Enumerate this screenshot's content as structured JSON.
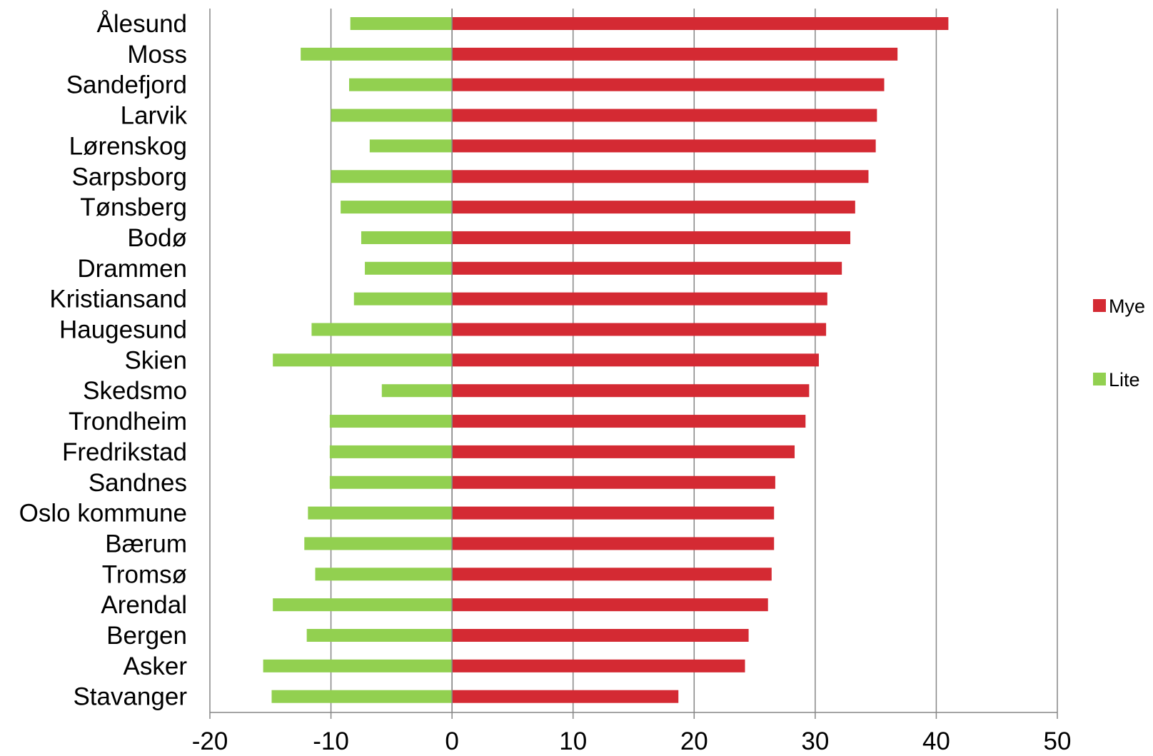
{
  "chart_data": {
    "type": "bar",
    "orientation": "horizontal",
    "categories": [
      "Ålesund",
      "Moss",
      "Sandefjord",
      "Larvik",
      "Lørenskog",
      "Sarpsborg",
      "Tønsberg",
      "Bodø",
      "Drammen",
      "Kristiansand",
      "Haugesund",
      "Skien",
      "Skedsmo",
      "Trondheim",
      "Fredrikstad",
      "Sandnes",
      "Oslo kommune",
      "Bærum",
      "Tromsø",
      "Arendal",
      "Bergen",
      "Asker",
      "Stavanger"
    ],
    "series": [
      {
        "name": "Mye",
        "color": "#d42a33",
        "values": [
          41.0,
          36.8,
          35.7,
          35.1,
          35.0,
          34.4,
          33.3,
          32.9,
          32.2,
          31.0,
          30.9,
          30.3,
          29.5,
          29.2,
          28.3,
          26.7,
          26.6,
          26.6,
          26.4,
          26.1,
          24.5,
          24.2,
          18.7
        ]
      },
      {
        "name": "Lite",
        "color": "#92d050",
        "values": [
          -8.4,
          -12.5,
          -8.5,
          -10.0,
          -6.8,
          -10.0,
          -9.2,
          -7.5,
          -7.2,
          -8.1,
          -11.6,
          -14.8,
          -5.8,
          -10.1,
          -10.1,
          -10.1,
          -11.9,
          -12.2,
          -11.3,
          -14.8,
          -12.0,
          -15.6,
          -14.9
        ]
      }
    ],
    "xlim": [
      -20,
      50
    ],
    "xticks": [
      "-20",
      "-10",
      "0",
      "10",
      "20",
      "30",
      "40",
      "50"
    ],
    "title": "",
    "xlabel": "",
    "ylabel": "",
    "grid": true,
    "legend_position": "right"
  }
}
